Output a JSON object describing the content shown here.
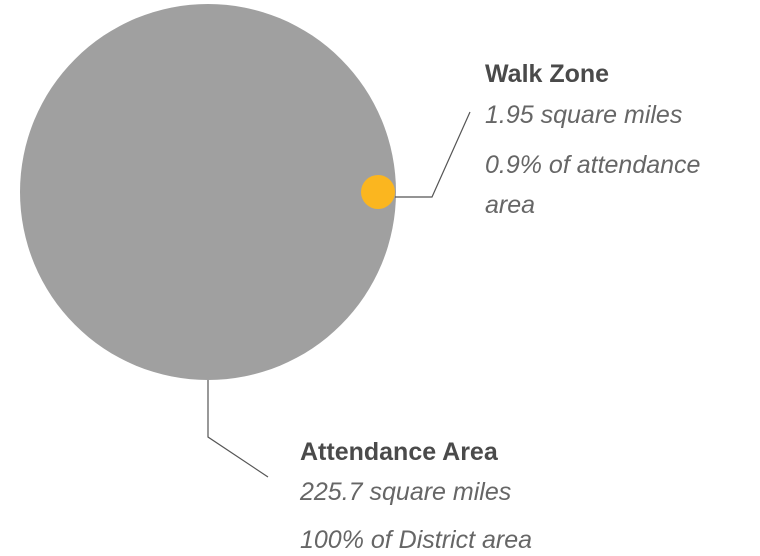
{
  "nodes": [
    {
      "label": "Walk Zone",
      "area": "1.95 square miles",
      "share": "0.9% of attendance area"
    },
    {
      "label": "Attendance Area",
      "area": "225.7 square miles",
      "share": "100% of District area"
    }
  ]
}
